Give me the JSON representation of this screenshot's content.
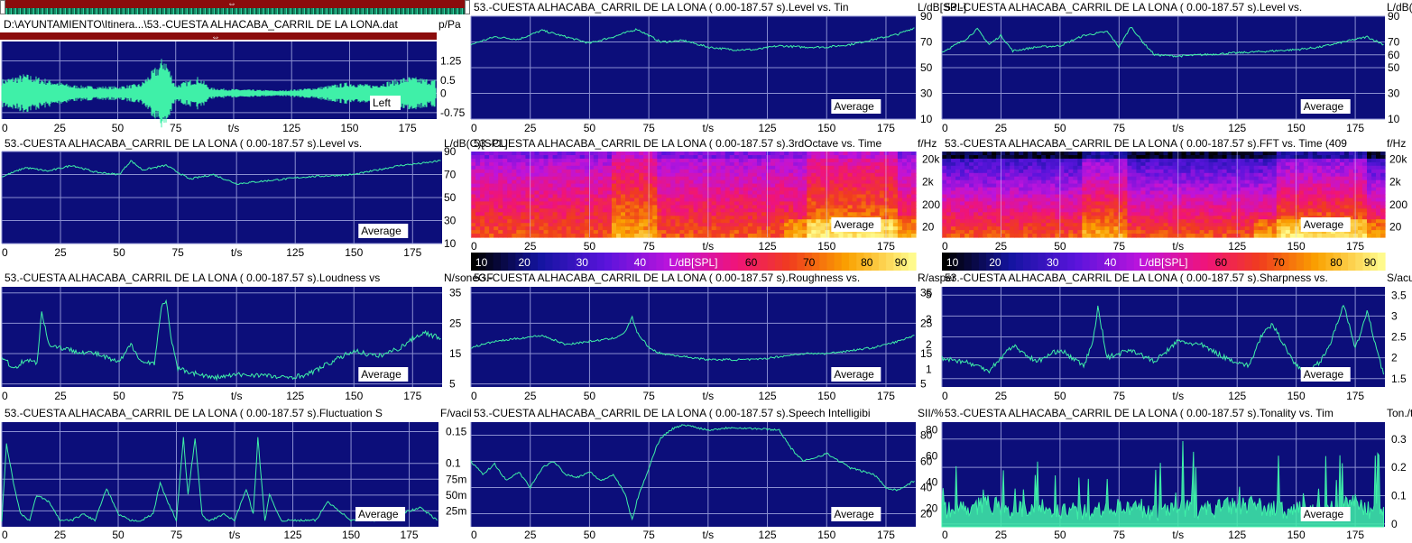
{
  "file_path": "D:\\AYUNTAMIENTO\\Itinera...\\53.-CUESTA ALHACABA_CARRIL DE LA LONA.dat",
  "palette": {
    "plot_bg": "#0c0e7a",
    "grid": "#8a8fd0",
    "trace": "#3ff0a8",
    "badge_bg": "#ffffff"
  },
  "colorbar": {
    "label": "L/dB[SPL]",
    "ticks": [
      "10",
      "20",
      "30",
      "40",
      "60",
      "70",
      "80",
      "90"
    ]
  },
  "chart_data": [
    {
      "id": "waveform",
      "type": "line",
      "title": "",
      "ylabel": "p/Pa",
      "xlabel": "t/s",
      "badge": "Left",
      "xlim": [
        0,
        187.57
      ],
      "ylim": [
        -1,
        2
      ],
      "yticks": [
        -0.75,
        0,
        0.5,
        1.25
      ],
      "ytick_labels": [
        "-0.75",
        "0",
        "0.5",
        "1.25"
      ],
      "xticks": [
        "0",
        "25",
        "50",
        "75",
        "125",
        "150",
        "175"
      ]
    },
    {
      "id": "level_spl",
      "type": "line",
      "title": "53.-CUESTA ALHACABA_CARRIL DE LA LONA ( 0.00-187.57 s).Level vs. Tin",
      "ylabel": "L/dB[SPL]",
      "xlabel": "t/s",
      "badge": "Average",
      "xlim": [
        0,
        187.57
      ],
      "ylim": [
        10,
        90
      ],
      "yticks": [
        10,
        30,
        50,
        70,
        90
      ],
      "ytick_labels": [
        "10",
        "30",
        "50",
        "70",
        "90"
      ],
      "xticks": [
        "0",
        "25",
        "50",
        "75",
        "125",
        "150",
        "175"
      ],
      "series": [
        {
          "x": [
            0,
            10,
            20,
            30,
            40,
            50,
            60,
            70,
            80,
            90,
            100,
            110,
            120,
            130,
            140,
            150,
            160,
            170,
            180,
            187
          ],
          "y": [
            68,
            74,
            72,
            79,
            74,
            69,
            74,
            80,
            70,
            71,
            66,
            64,
            64,
            67,
            66,
            66,
            68,
            72,
            76,
            81
          ]
        }
      ]
    },
    {
      "id": "level_a",
      "type": "line",
      "title": "53.-CUESTA ALHACABA_CARRIL DE LA LONA ( 0.00-187.57 s).Level vs.",
      "ylabel": "L/dB(A)[SPL]",
      "xlabel": "t/s",
      "badge": "Average",
      "xlim": [
        0,
        187.57
      ],
      "ylim": [
        10,
        90
      ],
      "yticks": [
        10,
        30,
        50,
        60,
        70,
        90
      ],
      "ytick_labels": [
        "10",
        "30",
        "50",
        "60",
        "70",
        "90"
      ],
      "xticks": [
        "0",
        "25",
        "50",
        "75",
        "125",
        "150",
        "175"
      ],
      "series": [
        {
          "x": [
            0,
            10,
            15,
            20,
            25,
            30,
            40,
            50,
            60,
            70,
            75,
            80,
            85,
            90,
            100,
            110,
            120,
            130,
            140,
            150,
            160,
            170,
            180,
            187
          ],
          "y": [
            62,
            72,
            80,
            68,
            75,
            63,
            66,
            67,
            75,
            78,
            66,
            82,
            70,
            60,
            59,
            60,
            61,
            62,
            63,
            64,
            66,
            70,
            74,
            68
          ]
        }
      ]
    },
    {
      "id": "level_c",
      "type": "line",
      "title": "53.-CUESTA ALHACABA_CARRIL DE LA LONA ( 0.00-187.57 s).Level vs.",
      "ylabel": "L/dB(C)[SPL]",
      "xlabel": "t/s",
      "badge": "Average",
      "xlim": [
        0,
        187.57
      ],
      "ylim": [
        10,
        90
      ],
      "yticks": [
        10,
        30,
        50,
        70,
        90
      ],
      "ytick_labels": [
        "10",
        "30",
        "50",
        "70",
        "90"
      ],
      "xticks": [
        "0",
        "25",
        "50",
        "75",
        "125",
        "150",
        "175"
      ],
      "series": [
        {
          "x": [
            0,
            10,
            20,
            30,
            40,
            50,
            55,
            60,
            70,
            80,
            90,
            100,
            110,
            120,
            130,
            140,
            150,
            160,
            170,
            180,
            187
          ],
          "y": [
            68,
            76,
            73,
            78,
            72,
            70,
            82,
            74,
            78,
            66,
            70,
            62,
            64,
            66,
            68,
            69,
            70,
            74,
            78,
            80,
            82
          ]
        }
      ]
    },
    {
      "id": "third_octave",
      "type": "heatmap",
      "title": "53.-CUESTA ALHACABA_CARRIL DE LA LONA ( 0.00-187.57 s).3rdOctave vs. Time",
      "ylabel": "f/Hz",
      "xlabel": "t/s",
      "badge": "Average",
      "xlim": [
        0,
        187.57
      ],
      "ytick_labels": [
        "20",
        "200",
        "2k",
        "20k"
      ],
      "xticks": [
        "0",
        "25",
        "50",
        "75",
        "125",
        "150",
        "175"
      ]
    },
    {
      "id": "fft_time",
      "type": "heatmap",
      "title": "53.-CUESTA ALHACABA_CARRIL DE LA LONA ( 0.00-187.57 s).FFT vs. Time (409",
      "ylabel": "f/Hz",
      "xlabel": "t/s",
      "badge": "Average",
      "xlim": [
        0,
        187.57
      ],
      "ytick_labels": [
        "20",
        "200",
        "2k",
        "20k"
      ],
      "xticks": [
        "0",
        "25",
        "50",
        "75",
        "125",
        "150",
        "175"
      ]
    },
    {
      "id": "loudness",
      "type": "line",
      "title": "53.-CUESTA ALHACABA_CARRIL DE LA LONA ( 0.00-187.57 s).Loudness vs",
      "ylabel": "N/soneGF",
      "xlabel": "t/s",
      "badge": "Average",
      "xlim": [
        0,
        187.57
      ],
      "ylim": [
        4,
        37
      ],
      "yticks": [
        5,
        15,
        25,
        35
      ],
      "ytick_labels": [
        "5",
        "15",
        "25",
        "35"
      ],
      "xticks": [
        "0",
        "25",
        "50",
        "75",
        "125",
        "150",
        "175"
      ],
      "series": [
        {
          "x": [
            0,
            5,
            10,
            15,
            17,
            20,
            30,
            40,
            50,
            55,
            60,
            65,
            68,
            70,
            72,
            75,
            80,
            90,
            100,
            110,
            120,
            130,
            140,
            150,
            160,
            170,
            175,
            180,
            187
          ],
          "y": [
            14,
            10,
            13,
            12,
            29,
            18,
            16,
            15,
            12,
            18,
            12,
            12,
            30,
            33,
            20,
            10,
            9,
            7,
            8,
            8,
            7,
            8,
            12,
            16,
            14,
            17,
            20,
            22,
            20
          ]
        }
      ]
    },
    {
      "id": "roughness",
      "type": "line",
      "title": "53.-CUESTA ALHACABA_CARRIL DE LA LONA ( 0.00-187.57 s).Roughness vs.",
      "ylabel": "R/asper",
      "xlabel": "t/s",
      "badge": "Average",
      "xlim": [
        0,
        187.57
      ],
      "ylim": [
        4,
        37
      ],
      "yticks": [
        5,
        15,
        25,
        35
      ],
      "ytick_labels": [
        "5",
        "15",
        "25",
        "35"
      ],
      "xticks": [
        "0",
        "25",
        "50",
        "75",
        "125",
        "150",
        "175"
      ],
      "series": [
        {
          "x": [
            0,
            10,
            20,
            30,
            40,
            50,
            60,
            65,
            68,
            70,
            75,
            80,
            90,
            100,
            110,
            120,
            130,
            140,
            150,
            160,
            170,
            180,
            187
          ],
          "y": [
            17,
            19,
            20,
            21,
            18,
            19,
            20,
            22,
            27,
            22,
            17,
            15,
            14,
            13,
            13,
            13,
            14,
            15,
            15,
            16,
            17,
            19,
            21
          ]
        }
      ]
    },
    {
      "id": "sharpness",
      "type": "line",
      "title": "53.-CUESTA ALHACABA_CARRIL DE LA LONA ( 0.00-187.57 s).Sharpness vs.",
      "ylabel": "S/acum",
      "xlabel": "t/s",
      "badge": "Average",
      "xlim": [
        0,
        187.57
      ],
      "ylim": [
        1.3,
        3.7
      ],
      "yticks": [
        1.5,
        2,
        2.5,
        3,
        3.5
      ],
      "ytick_labels": [
        "1.5",
        "2",
        "2.5",
        "3",
        "3.5"
      ],
      "left_ytick_labels": [
        "1",
        "2",
        "3",
        "5"
      ],
      "xticks": [
        "0",
        "25",
        "50",
        "75",
        "125",
        "150",
        "175"
      ],
      "series": [
        {
          "x": [
            0,
            10,
            20,
            30,
            40,
            50,
            60,
            64,
            66,
            70,
            80,
            90,
            100,
            110,
            120,
            130,
            135,
            140,
            150,
            155,
            160,
            165,
            170,
            175,
            180,
            187
          ],
          "y": [
            2.0,
            1.9,
            1.7,
            2.3,
            1.9,
            2.2,
            1.8,
            2.4,
            3.2,
            2.0,
            2.2,
            1.9,
            2.4,
            2.3,
            2.0,
            1.8,
            2.5,
            2.8,
            1.8,
            1.7,
            1.9,
            2.4,
            3.3,
            2.2,
            3.1,
            1.6
          ]
        }
      ]
    },
    {
      "id": "fluctuation",
      "type": "line",
      "title": "53.-CUESTA ALHACABA_CARRIL DE LA LONA ( 0.00-187.57 s).Fluctuation S",
      "ylabel": "F/vacil",
      "xlabel": "t/s",
      "badge": "Average",
      "xlim": [
        0,
        187.57
      ],
      "ylim": [
        0,
        0.165
      ],
      "yticks": [
        0.025,
        0.05,
        0.075,
        0.1,
        0.15
      ],
      "ytick_labels": [
        "25m",
        "50m",
        "75m",
        "0.1",
        "0.15"
      ],
      "xticks": [
        "0",
        "25",
        "50",
        "75",
        "125",
        "150",
        "175"
      ],
      "series": [
        {
          "x": [
            0,
            2,
            5,
            8,
            12,
            15,
            20,
            25,
            30,
            35,
            40,
            45,
            50,
            55,
            60,
            65,
            68,
            70,
            75,
            78,
            80,
            83,
            86,
            88,
            90,
            95,
            100,
            105,
            108,
            110,
            113,
            115,
            120,
            130,
            135,
            140,
            150,
            160,
            170,
            180,
            187
          ],
          "y": [
            0.01,
            0.13,
            0.07,
            0.02,
            0.01,
            0.05,
            0.04,
            0.01,
            0.01,
            0.02,
            0.01,
            0.06,
            0.02,
            0.01,
            0.01,
            0.02,
            0.07,
            0.05,
            0.01,
            0.14,
            0.05,
            0.14,
            0.02,
            0.01,
            0.01,
            0.02,
            0.01,
            0.06,
            0.02,
            0.14,
            0.01,
            0.05,
            0.01,
            0.01,
            0.01,
            0.04,
            0.01,
            0.01,
            0.02,
            0.03,
            0.01
          ]
        }
      ]
    },
    {
      "id": "speech_intelligibility",
      "type": "line",
      "title": "53.-CUESTA ALHACABA_CARRIL DE LA LONA ( 0.00-187.57 s).Speech Intelligibi",
      "ylabel": "SII/%",
      "xlabel": "t/s",
      "badge": "Average",
      "xlim": [
        0,
        187.57
      ],
      "ylim": [
        10,
        90
      ],
      "yticks": [
        20,
        40,
        60,
        80
      ],
      "ytick_labels": [
        "20",
        "40",
        "60",
        "80"
      ],
      "xticks": [
        "0",
        "25",
        "50",
        "75",
        "125",
        "150",
        "175"
      ],
      "series": [
        {
          "x": [
            0,
            5,
            10,
            15,
            20,
            25,
            30,
            35,
            40,
            45,
            50,
            55,
            60,
            65,
            68,
            70,
            75,
            78,
            80,
            85,
            90,
            95,
            100,
            110,
            120,
            130,
            135,
            140,
            150,
            160,
            170,
            175,
            180,
            187
          ],
          "y": [
            60,
            50,
            58,
            45,
            52,
            40,
            55,
            60,
            50,
            48,
            52,
            45,
            50,
            35,
            15,
            30,
            55,
            70,
            78,
            85,
            88,
            86,
            84,
            86,
            85,
            84,
            70,
            60,
            66,
            55,
            50,
            40,
            38,
            45
          ]
        }
      ]
    },
    {
      "id": "tonality",
      "type": "line",
      "title": "53.-CUESTA ALHACABA_CARRIL DE LA LONA ( 0.00-187.57 s).Tonality vs. Tim",
      "ylabel": "Ton./tu",
      "xlabel": "t/s",
      "badge": "Average",
      "xlim": [
        0,
        187.57
      ],
      "ylim": [
        -0.01,
        0.36
      ],
      "yticks": [
        0,
        0.1,
        0.2,
        0.3
      ],
      "ytick_labels": [
        "0",
        "0.1",
        "0.2",
        "0.3"
      ],
      "left_ytick_labels": [
        "20",
        "40",
        "60",
        "80"
      ],
      "xticks": [
        "0",
        "25",
        "50",
        "75",
        "125",
        "150",
        "175"
      ],
      "series": [
        {
          "x": [
            0,
            10,
            20,
            30,
            40,
            50,
            60,
            70,
            80,
            90,
            100,
            110,
            120,
            130,
            140,
            150,
            160,
            170,
            175,
            180,
            187
          ],
          "y": [
            0.05,
            0.06,
            0.07,
            0.05,
            0.06,
            0.05,
            0.04,
            0.06,
            0.05,
            0.04,
            0.06,
            0.05,
            0.06,
            0.07,
            0.05,
            0.05,
            0.04,
            0.06,
            0.08,
            0.05,
            0.06
          ]
        }
      ]
    }
  ]
}
